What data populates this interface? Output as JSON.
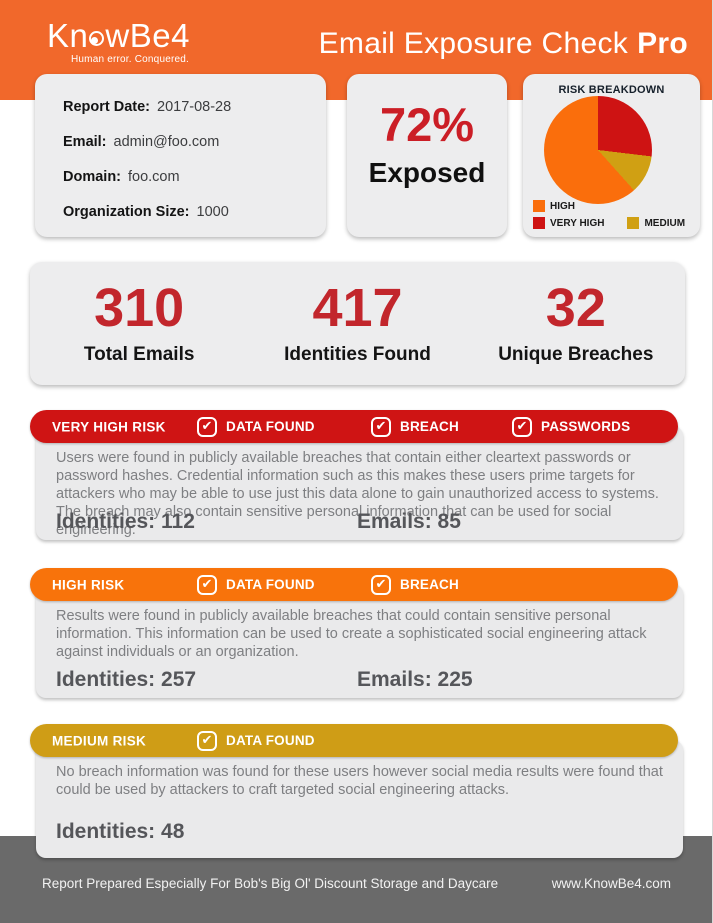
{
  "theme": {
    "header_orange": "#F1682B",
    "very_high_red": "#CF1414",
    "high_orange": "#F8730B",
    "medium_gold": "#CF9D16",
    "stat_red": "#C2262C",
    "card_gray": "#EDEDEE",
    "footer_gray": "#6A6A6A"
  },
  "header": {
    "logo": {
      "name": "KnowBe4",
      "name_pre": "Kn",
      "name_post": "wBe4",
      "tagline": "Human error. Conquered."
    },
    "title": "Email Exposure Check",
    "title_suffix": "Pro"
  },
  "info": {
    "fields": [
      {
        "label": "Report Date:",
        "value": "2017-08-28"
      },
      {
        "label": "Email:",
        "value": "admin@foo.com"
      },
      {
        "label": "Domain:",
        "value": "foo.com"
      },
      {
        "label": "Organization Size:",
        "value": "1000"
      }
    ]
  },
  "exposure": {
    "percent": "72%",
    "label": "Exposed"
  },
  "risk_breakdown": {
    "title": "RISK BREAKDOWN",
    "legend": [
      {
        "label": "HIGH",
        "color": "#FA6E0C"
      },
      {
        "label": "VERY HIGH",
        "color": "#CE1313"
      },
      {
        "label": "MEDIUM",
        "color": "#D0A013"
      }
    ]
  },
  "chart_data": {
    "type": "pie",
    "title": "RISK BREAKDOWN",
    "slices": [
      {
        "label": "VERY HIGH",
        "value": 26.9,
        "count": 112,
        "color": "#CE1313"
      },
      {
        "label": "MEDIUM",
        "value": 11.5,
        "count": 48,
        "color": "#D0A013"
      },
      {
        "label": "HIGH",
        "value": 61.6,
        "count": 257,
        "color": "#FA6E0C"
      }
    ],
    "start_angle_deg": 0,
    "direction": "clockwise",
    "legend_position": "bottom-left"
  },
  "stats": [
    {
      "value": "310",
      "label": "Total Emails"
    },
    {
      "value": "417",
      "label": "Identities Found"
    },
    {
      "value": "32",
      "label": "Unique Breaches"
    }
  ],
  "sections": [
    {
      "name": "VERY HIGH RISK",
      "color": "#CF1414",
      "badges": [
        "DATA FOUND",
        "BREACH",
        "PASSWORDS"
      ],
      "check_glyph": "✔",
      "description": "Users were found in publicly available breaches that contain either cleartext passwords or password hashes. Credential information such as this makes these users prime targets for attackers who may be able to use just this data alone to gain unauthorized access to systems. The breach may also contain sensitive personal information that can be used for social engineering.",
      "identities": "Identities: 112",
      "emails": "Emails: 85"
    },
    {
      "name": "HIGH RISK",
      "color": "#F8730B",
      "badges": [
        "DATA FOUND",
        "BREACH"
      ],
      "check_glyph": "✔",
      "description": "Results were found in publicly available breaches that could contain sensitive personal information. This information can be used to create a sophisticated social engineering attack against individuals or an organization.",
      "identities": "Identities: 257",
      "emails": "Emails: 225"
    },
    {
      "name": "MEDIUM RISK",
      "color": "#CF9D16",
      "badges": [
        "DATA FOUND"
      ],
      "check_glyph": "✔",
      "description": "No breach information was found for these users however social media results were found that could be used by attackers to craft targeted social engineering attacks.",
      "identities": "Identities: 48",
      "emails": ""
    }
  ],
  "footer": {
    "left": "Report Prepared Especially For Bob's Big Ol' Discount Storage and Daycare",
    "right": "www.KnowBe4.com"
  }
}
